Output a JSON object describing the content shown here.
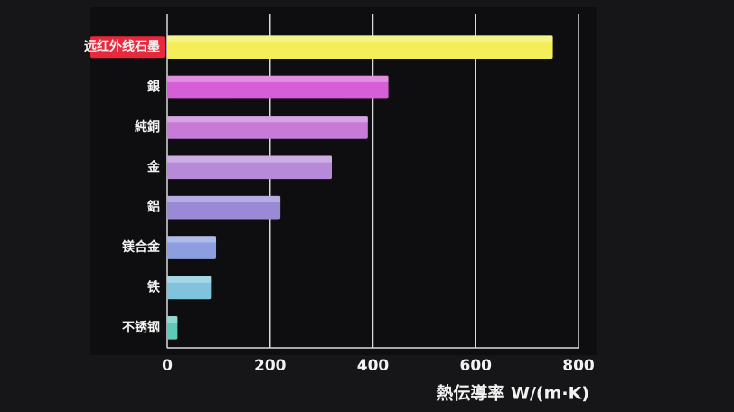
{
  "chart_data": {
    "type": "barh",
    "x_label": "熱伝導率 W/(m·K)",
    "categories": [
      "远红外线石墨",
      "銀",
      "純銅",
      "金",
      "鋁",
      "镁合金",
      "铁",
      "不锈钢"
    ],
    "values": [
      750,
      430,
      390,
      320,
      220,
      95,
      85,
      20
    ],
    "colors": [
      "#f4ee5a",
      "#d65fd6",
      "#c77ad8",
      "#b68ad8",
      "#9a8ad6",
      "#8c9ee0",
      "#7fc4dc",
      "#5fc9b8"
    ],
    "xlim": [
      0,
      800
    ],
    "xticks": [
      0,
      200,
      400,
      600,
      800
    ],
    "grid": true
  }
}
